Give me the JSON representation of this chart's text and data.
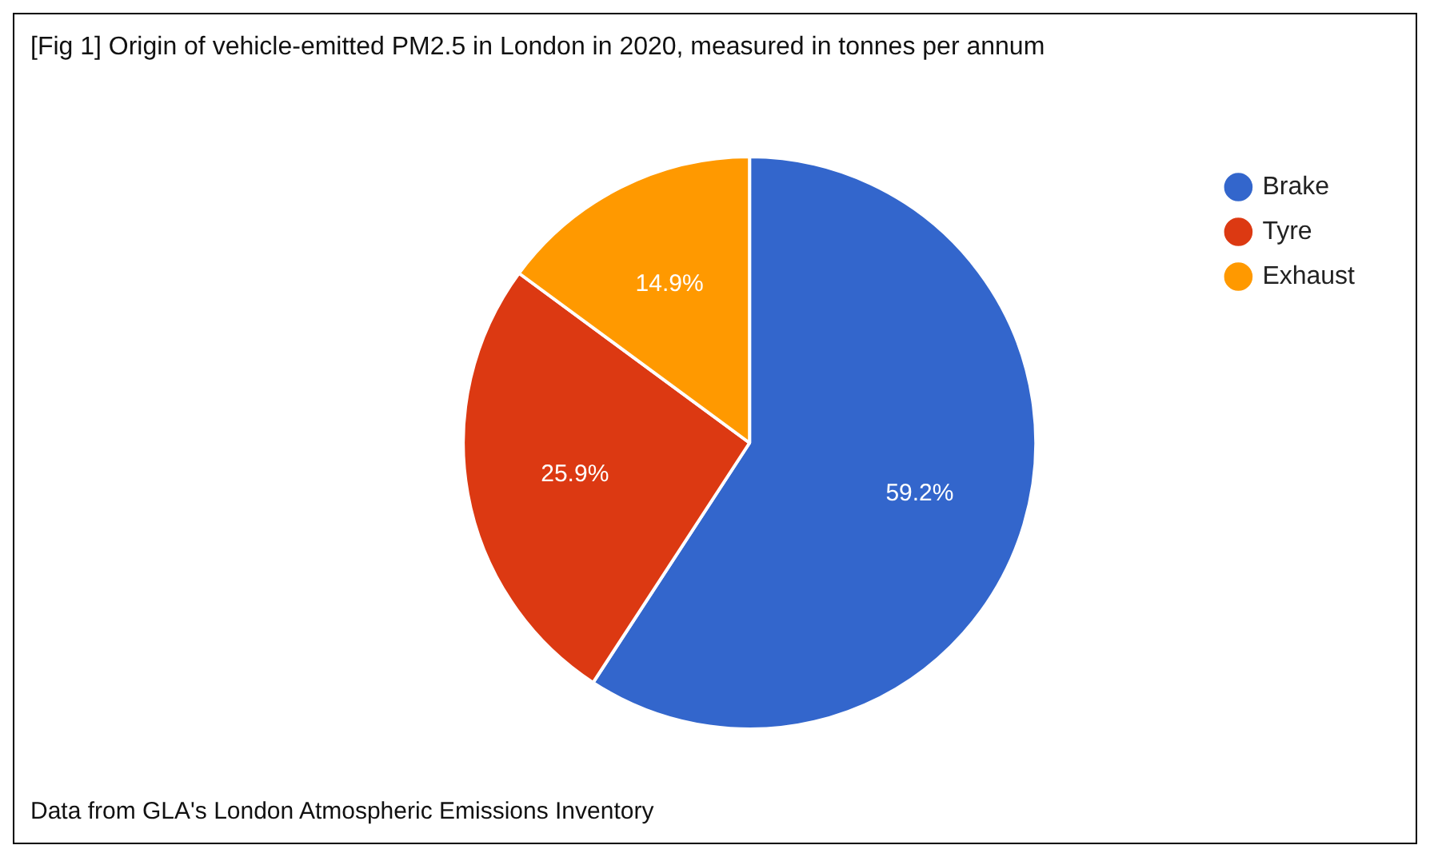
{
  "chart_data": {
    "type": "pie",
    "title": "[Fig 1] Origin of vehicle-emitted PM2.5 in London in 2020, measured in tonnes per annum",
    "categories": [
      "Brake",
      "Tyre",
      "Exhaust"
    ],
    "values": [
      59.2,
      25.9,
      14.9
    ],
    "colors": [
      "#3366cc",
      "#dc3912",
      "#ff9900"
    ],
    "value_labels": [
      "59.2%",
      "25.9%",
      "14.9%"
    ],
    "legend": "top right",
    "annotations": [
      "Data from GLA's London Atmospheric Emissions Inventory"
    ]
  }
}
